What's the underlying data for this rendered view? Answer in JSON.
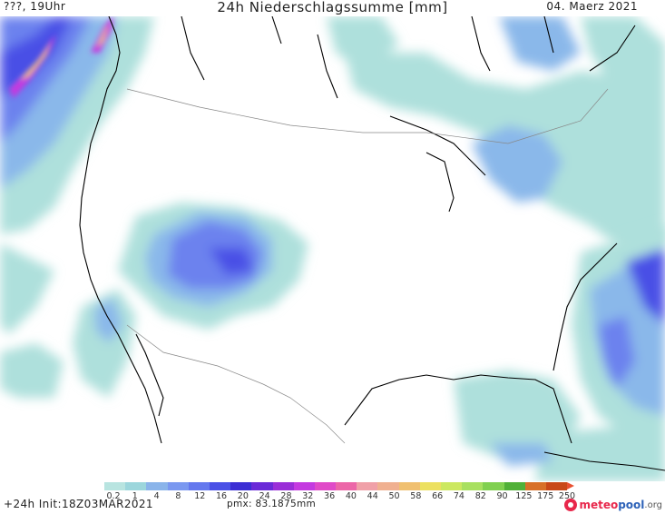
{
  "header": {
    "left": "???, 19Uhr",
    "title": "24h Niederschlagssumme [mm]",
    "right": "04. Maerz 2021"
  },
  "legend": {
    "ticks": [
      "0.2",
      "1",
      "4",
      "8",
      "12",
      "16",
      "20",
      "24",
      "28",
      "32",
      "36",
      "40",
      "44",
      "50",
      "58",
      "66",
      "74",
      "82",
      "90",
      "125",
      "175",
      "250"
    ],
    "colors": [
      "#b8e4e0",
      "#9cd6dc",
      "#8ab4ea",
      "#7a98f0",
      "#6478ee",
      "#4a50e6",
      "#3c2ed4",
      "#6a2ad8",
      "#9a2ed8",
      "#c43ae0",
      "#e04ac8",
      "#ec66a8",
      "#f0a0a8",
      "#f0b090",
      "#f0c070",
      "#ece060",
      "#cce860",
      "#a8e060",
      "#80d050",
      "#50b038",
      "#d87028",
      "#c84818"
    ]
  },
  "footer": {
    "run": "+24h Init:18Z03MAR2021",
    "pmx": "pmx: 83.1875mm",
    "logo_a": "meteo",
    "logo_b": "pool",
    "logo_c": ".org"
  }
}
